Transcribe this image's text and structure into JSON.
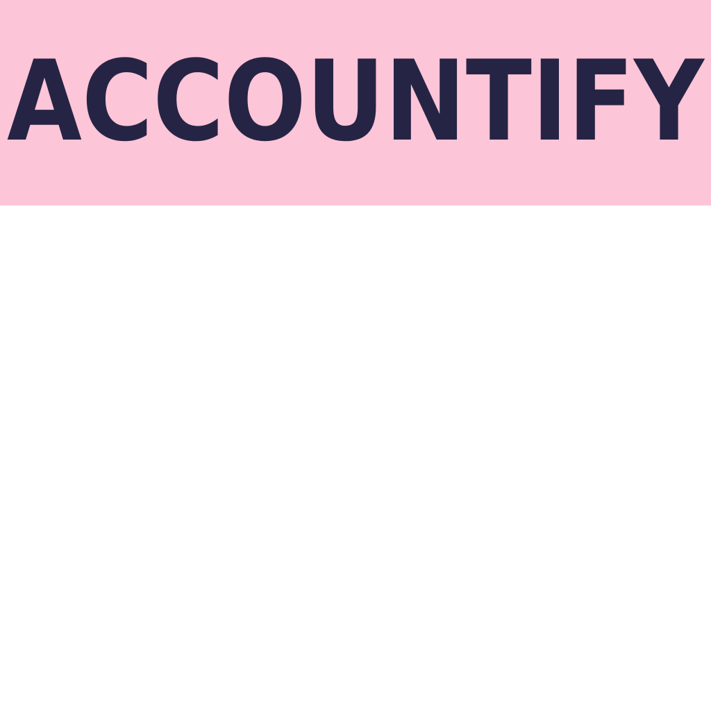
{
  "brand": {
    "name": "ACCOUNTIFY",
    "text_color": "#262444",
    "band_color": "#fdc5d8"
  },
  "page": {
    "background_color": "#ffffff"
  }
}
